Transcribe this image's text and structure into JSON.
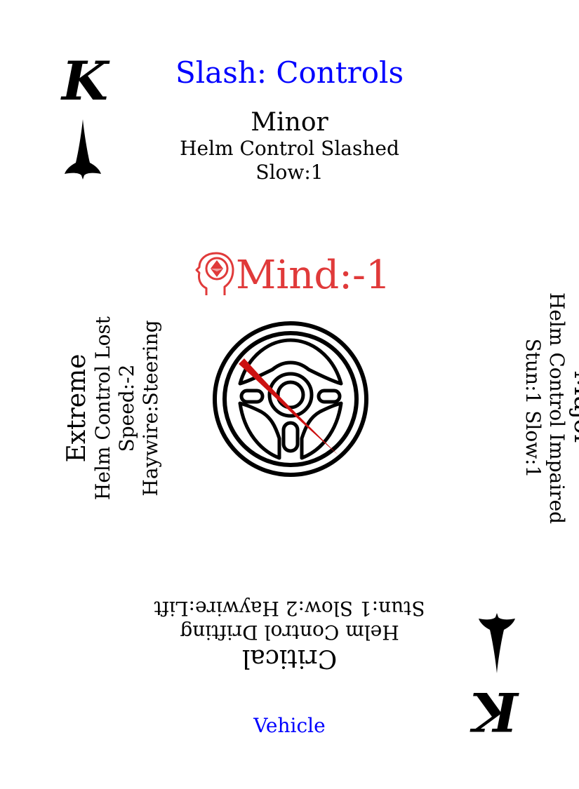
{
  "card": {
    "rank": "K",
    "suit_icon": "spade-dagger-icon",
    "title": "Slash: Controls",
    "footer": "Vehicle",
    "colors": {
      "title": "#0000ff",
      "mind": "#e03a3a",
      "slash": "#cc1111"
    }
  },
  "minor": {
    "heading": "Minor",
    "line1": "Helm Control Slashed",
    "line2": "Slow:1"
  },
  "major": {
    "heading": "Major",
    "line1": "Helm Control Impaired",
    "line2": "Stun:1 Slow:1"
  },
  "critical": {
    "heading": "Critical",
    "line1": "Helm Control Drifting",
    "line2": "Stun:1 Slow:2 Haywire:Lift"
  },
  "extreme": {
    "heading": "Extreme",
    "line1": "Helm Control Lost",
    "line2": "Speed:-2 Haywire:Steering"
  },
  "mind": {
    "icon": "mind-head-icon",
    "label": "Mind:-1"
  },
  "illustration": {
    "icon": "steering-wheel-icon"
  }
}
